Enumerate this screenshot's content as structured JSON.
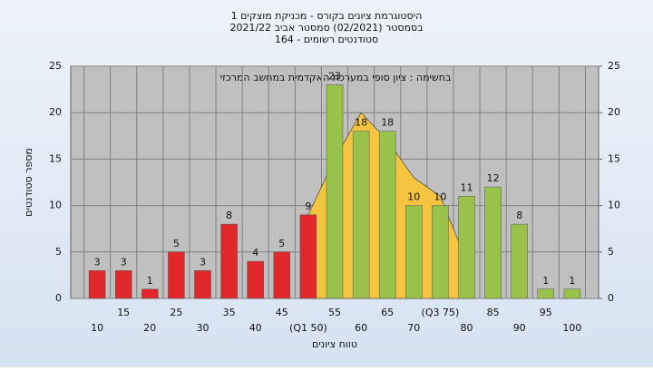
{
  "chart_data": {
    "type": "bar",
    "title": [
      "היסטוגרמת ציונים בקורס - מכניקת מוצקים 1",
      "בסמסטר  (02/2021)  סמסטר אביב 2021/22",
      "סטודנטים רשומים - 164"
    ],
    "annotation": "בחשימה : ציון סופי במערכת האקדמית במחשב המרכזי",
    "x_label": "טווח ציונים",
    "y_label": "מספר סטודנטים",
    "categories": [
      "10",
      "15",
      "20",
      "25",
      "30",
      "35",
      "40",
      "45",
      "(Q1 50)",
      "55",
      "60",
      "65",
      "70",
      "(Q3 75)",
      "80",
      "85",
      "90",
      "95",
      "100"
    ],
    "values": [
      3,
      3,
      1,
      5,
      3,
      8,
      4,
      5,
      9,
      23,
      18,
      18,
      10,
      10,
      11,
      12,
      8,
      1,
      1
    ],
    "colors": [
      "#e0282a",
      "#e0282a",
      "#e0282a",
      "#e0282a",
      "#e0282a",
      "#e0282a",
      "#e0282a",
      "#e0282a",
      "#e0282a",
      "#98c24a",
      "#98c24a",
      "#98c24a",
      "#98c24a",
      "#98c24a",
      "#98c24a",
      "#98c24a",
      "#98c24a",
      "#98c24a",
      "#98c24a"
    ],
    "area": {
      "color": "#f5c542",
      "values": [
        null,
        null,
        null,
        null,
        null,
        null,
        null,
        null,
        9,
        15,
        20,
        17,
        13,
        11,
        4,
        null,
        null,
        null,
        null
      ]
    },
    "ylim": [
      0,
      25
    ],
    "yticks": [
      0,
      5,
      10,
      15,
      20,
      25
    ],
    "y2lim": [
      0,
      25
    ],
    "y2ticks": [
      0,
      5,
      10,
      15,
      20,
      25
    ],
    "grid": true
  }
}
